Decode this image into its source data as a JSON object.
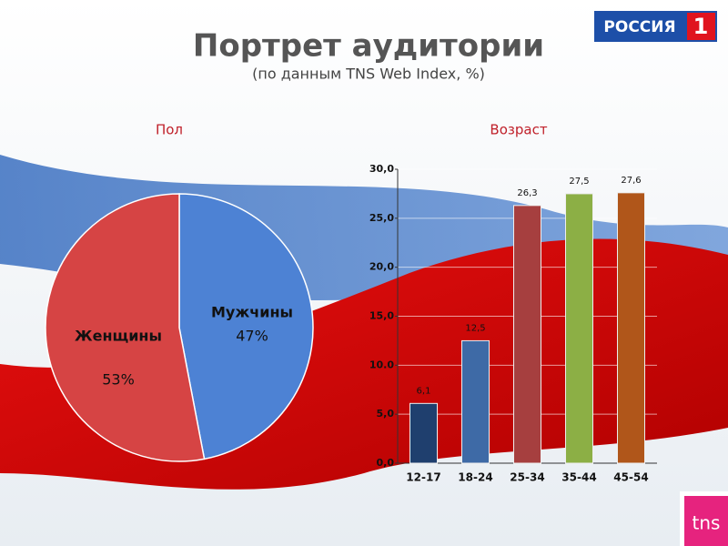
{
  "title": "Портрет аудитории",
  "subtitle": "(по данным TNS Web Index, %)",
  "logos": [
    "РОССИЯ",
    "1",
    "tns"
  ],
  "chart_data": [
    {
      "type": "pie",
      "title": "Пол",
      "categories": [
        "Мужчины",
        "Женщины"
      ],
      "values": [
        47,
        53
      ],
      "value_labels": [
        "47%",
        "53%"
      ],
      "colors": [
        "#4d82d4",
        "#d64444"
      ]
    },
    {
      "type": "bar",
      "title": "Возраст",
      "categories": [
        "12-17",
        "18-24",
        "25-34",
        "35-44",
        "45-54"
      ],
      "values": [
        6.1,
        12.5,
        26.3,
        27.5,
        27.6
      ],
      "value_labels": [
        "6,1",
        "12,5",
        "26,3",
        "27,5",
        "27,6"
      ],
      "colors": [
        "#1f3f6e",
        "#3e6aa6",
        "#a63f3f",
        "#8caf45",
        "#b0561a"
      ],
      "ylim": [
        0,
        30
      ],
      "yticks": [
        {
          "value": 0,
          "label": "0,0"
        },
        {
          "value": 5,
          "label": "5,0"
        },
        {
          "value": 10,
          "label": "10.0"
        },
        {
          "value": 15,
          "label": "15,0"
        },
        {
          "value": 20,
          "label": "20,0"
        },
        {
          "value": 25,
          "label": "25,0"
        },
        {
          "value": 30,
          "label": "30,0"
        }
      ],
      "grid": true
    }
  ]
}
